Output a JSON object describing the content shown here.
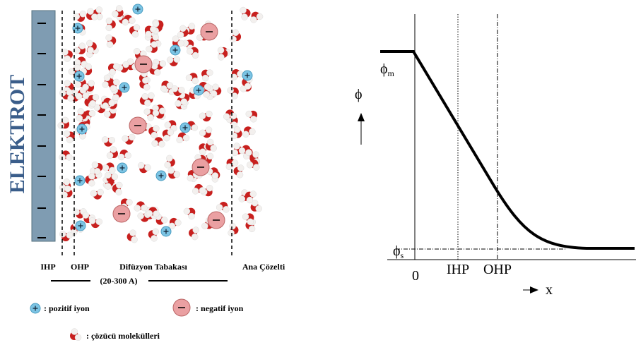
{
  "left_panel": {
    "electrode_label": "ELEKTROT",
    "layer_labels": [
      "IHP",
      "OHP",
      "Difüzyon Tabakası",
      "Ana Çözelti"
    ],
    "thickness_label": "(20-300 A)",
    "legend": {
      "positive_ion": ": pozitif iyon",
      "negative_ion": ": negatif iyon",
      "solvent": ": çözücü molekülleri"
    }
  },
  "right_panel": {
    "phi_m": {
      "symbol": "ϕ",
      "subscript": "m"
    },
    "axis_y": "ϕ",
    "phi_s": {
      "symbol": "ϕ",
      "subscript": "s"
    },
    "origin": "0",
    "ihp": "IHP",
    "ohp": "OHP",
    "axis_x": "x"
  }
}
